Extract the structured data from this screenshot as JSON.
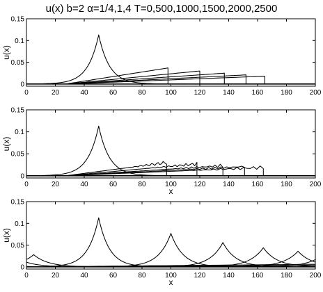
{
  "figure": {
    "title": "u(x)    b=2    α=1/4,1,4    T=0,500,1000,1500,2000,2500"
  },
  "chart_data": [
    {
      "type": "line",
      "panel": "top",
      "xlabel": "",
      "ylabel": "u(x)",
      "xlim": [
        0,
        200
      ],
      "ylim": [
        -0.005,
        0.15
      ],
      "xticks": [
        "0",
        "20",
        "40",
        "60",
        "80",
        "100",
        "120",
        "140",
        "160",
        "180",
        "200"
      ],
      "yticks": [
        "0",
        "0.05",
        "0.1",
        "0.15"
      ],
      "series": [
        {
          "kind": "peakon",
          "center": 50,
          "amp": 0.113,
          "width": 7.5
        },
        {
          "kind": "sawtooth",
          "start": 27,
          "front": 98,
          "amp": 0.037
        },
        {
          "kind": "sawtooth",
          "start": 27,
          "front": 120,
          "amp": 0.03
        },
        {
          "kind": "sawtooth",
          "start": 27,
          "front": 137,
          "amp": 0.025
        },
        {
          "kind": "sawtooth",
          "start": 27,
          "front": 152,
          "amp": 0.021
        },
        {
          "kind": "sawtooth",
          "start": 27,
          "front": 165,
          "amp": 0.018
        }
      ]
    },
    {
      "type": "line",
      "panel": "middle",
      "xlabel": "x",
      "ylabel": "u(x)",
      "xlim": [
        0,
        200
      ],
      "ylim": [
        -0.005,
        0.15
      ],
      "xticks": [
        "0",
        "20",
        "40",
        "60",
        "80",
        "100",
        "120",
        "140",
        "160",
        "180",
        "200"
      ],
      "yticks": [
        "0",
        "0.05",
        "0.1",
        "0.15"
      ],
      "series": [
        {
          "kind": "peakon",
          "center": 50,
          "amp": 0.113,
          "width": 7.5
        },
        {
          "kind": "wiggly_sawtooth",
          "start": 27,
          "front": 97,
          "amp": 0.03
        },
        {
          "kind": "wiggly_sawtooth",
          "start": 27,
          "front": 118,
          "amp": 0.027
        },
        {
          "kind": "wiggly_sawtooth",
          "start": 27,
          "front": 136,
          "amp": 0.023
        },
        {
          "kind": "wiggly_sawtooth",
          "start": 27,
          "front": 151,
          "amp": 0.021
        },
        {
          "kind": "wiggly_sawtooth",
          "start": 27,
          "front": 164,
          "amp": 0.019
        }
      ]
    },
    {
      "type": "line",
      "panel": "bottom",
      "xlabel": "x",
      "ylabel": "u(x)",
      "xlim": [
        0,
        200
      ],
      "ylim": [
        -0.005,
        0.15
      ],
      "xticks": [
        "0",
        "20",
        "40",
        "60",
        "80",
        "100",
        "120",
        "140",
        "160",
        "180",
        "200"
      ],
      "yticks": [
        "0",
        "0.05",
        "0.1",
        "0.15"
      ],
      "series": [
        {
          "kind": "peakon",
          "center": 50,
          "amp": 0.113,
          "width": 7.5
        },
        {
          "kind": "peakon",
          "center": 100,
          "amp": 0.077,
          "width": 8.5
        },
        {
          "kind": "peakon",
          "center": 136,
          "amp": 0.056,
          "width": 9
        },
        {
          "kind": "peakon",
          "center": 164,
          "amp": 0.044,
          "width": 9.5
        },
        {
          "kind": "peakon",
          "center": 188,
          "amp": 0.036,
          "width": 10
        },
        {
          "kind": "peakon",
          "center": 5,
          "amp": 0.028,
          "width": 10
        },
        {
          "kind": "sawtooth",
          "start": 0,
          "front": 200,
          "amp": 0.006
        },
        {
          "kind": "sawtooth",
          "start": 20,
          "front": 200,
          "amp": 0.004
        }
      ]
    }
  ]
}
